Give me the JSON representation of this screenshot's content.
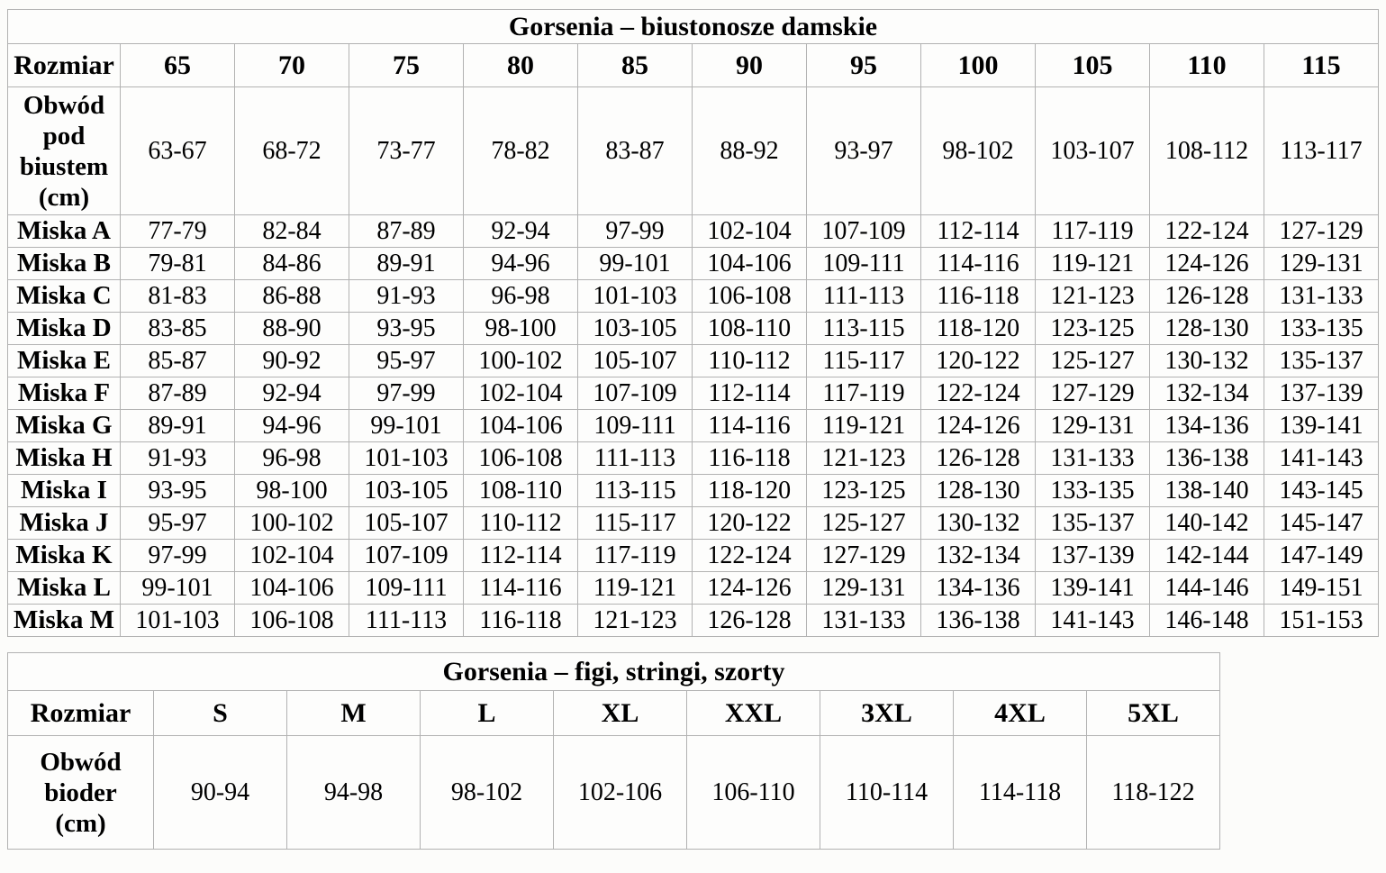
{
  "page": {
    "background_color": "#fcfcfa",
    "border_color": "#b2b2b2",
    "text_color": "#000000"
  },
  "bras_table": {
    "title": "Gorsenia – biustonosze damskie",
    "size_row_label": "Rozmiar",
    "sizes": [
      "65",
      "70",
      "75",
      "80",
      "85",
      "90",
      "95",
      "100",
      "105",
      "110",
      "115"
    ],
    "underbust_label": "Obwód pod biustem (cm)",
    "underbust_ranges": [
      "63-67",
      "68-72",
      "73-77",
      "78-82",
      "83-87",
      "88-92",
      "93-97",
      "98-102",
      "103-107",
      "108-112",
      "113-117"
    ],
    "cup_rows": [
      {
        "label": "Miska A",
        "values": [
          "77-79",
          "82-84",
          "87-89",
          "92-94",
          "97-99",
          "102-104",
          "107-109",
          "112-114",
          "117-119",
          "122-124",
          "127-129"
        ]
      },
      {
        "label": "Miska B",
        "values": [
          "79-81",
          "84-86",
          "89-91",
          "94-96",
          "99-101",
          "104-106",
          "109-111",
          "114-116",
          "119-121",
          "124-126",
          "129-131"
        ]
      },
      {
        "label": "Miska C",
        "values": [
          "81-83",
          "86-88",
          "91-93",
          "96-98",
          "101-103",
          "106-108",
          "111-113",
          "116-118",
          "121-123",
          "126-128",
          "131-133"
        ]
      },
      {
        "label": "Miska D",
        "values": [
          "83-85",
          "88-90",
          "93-95",
          "98-100",
          "103-105",
          "108-110",
          "113-115",
          "118-120",
          "123-125",
          "128-130",
          "133-135"
        ]
      },
      {
        "label": "Miska E",
        "values": [
          "85-87",
          "90-92",
          "95-97",
          "100-102",
          "105-107",
          "110-112",
          "115-117",
          "120-122",
          "125-127",
          "130-132",
          "135-137"
        ]
      },
      {
        "label": "Miska F",
        "values": [
          "87-89",
          "92-94",
          "97-99",
          "102-104",
          "107-109",
          "112-114",
          "117-119",
          "122-124",
          "127-129",
          "132-134",
          "137-139"
        ]
      },
      {
        "label": "Miska G",
        "values": [
          "89-91",
          "94-96",
          "99-101",
          "104-106",
          "109-111",
          "114-116",
          "119-121",
          "124-126",
          "129-131",
          "134-136",
          "139-141"
        ]
      },
      {
        "label": "Miska H",
        "values": [
          "91-93",
          "96-98",
          "101-103",
          "106-108",
          "111-113",
          "116-118",
          "121-123",
          "126-128",
          "131-133",
          "136-138",
          "141-143"
        ]
      },
      {
        "label": "Miska I",
        "values": [
          "93-95",
          "98-100",
          "103-105",
          "108-110",
          "113-115",
          "118-120",
          "123-125",
          "128-130",
          "133-135",
          "138-140",
          "143-145"
        ]
      },
      {
        "label": "Miska J",
        "values": [
          "95-97",
          "100-102",
          "105-107",
          "110-112",
          "115-117",
          "120-122",
          "125-127",
          "130-132",
          "135-137",
          "140-142",
          "145-147"
        ]
      },
      {
        "label": "Miska K",
        "values": [
          "97-99",
          "102-104",
          "107-109",
          "112-114",
          "117-119",
          "122-124",
          "127-129",
          "132-134",
          "137-139",
          "142-144",
          "147-149"
        ]
      },
      {
        "label": "Miska L",
        "values": [
          "99-101",
          "104-106",
          "109-111",
          "114-116",
          "119-121",
          "124-126",
          "129-131",
          "134-136",
          "139-141",
          "144-146",
          "149-151"
        ]
      },
      {
        "label": "Miska M",
        "values": [
          "101-103",
          "106-108",
          "111-113",
          "116-118",
          "121-123",
          "126-128",
          "131-133",
          "136-138",
          "141-143",
          "146-148",
          "151-153"
        ]
      }
    ]
  },
  "panties_table": {
    "title": "Gorsenia – figi, stringi, szorty",
    "size_row_label": "Rozmiar",
    "sizes": [
      "S",
      "M",
      "L",
      "XL",
      "XXL",
      "3XL",
      "4XL",
      "5XL"
    ],
    "hips_label": "Obwód bioder (cm)",
    "hips_ranges": [
      "90-94",
      "94-98",
      "98-102",
      "102-106",
      "106-110",
      "110-114",
      "114-118",
      "118-122"
    ]
  }
}
